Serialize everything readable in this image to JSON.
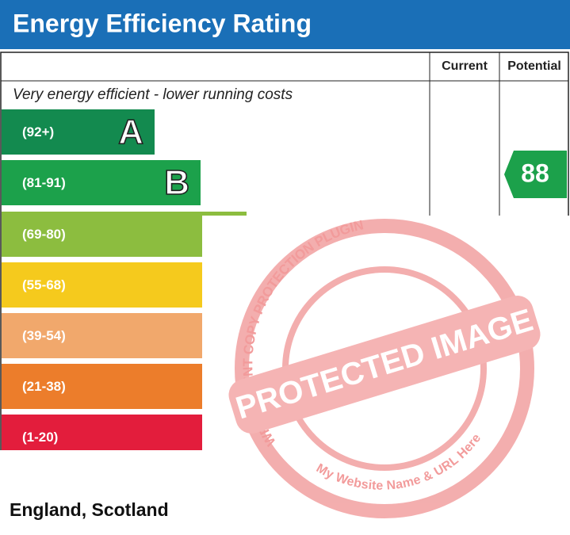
{
  "header": {
    "title": "Energy Efficiency Rating"
  },
  "table": {
    "columns": [
      "Current",
      "Potential"
    ],
    "top_note": "Very energy efficient - lower running costs",
    "bands": [
      {
        "range": "(92+)",
        "letter": "A"
      },
      {
        "range": "(81-91)",
        "letter": "B"
      },
      {
        "range": "(69-80)"
      },
      {
        "range": "(55-68)"
      },
      {
        "range": "(39-54)"
      },
      {
        "range": "(21-38)"
      },
      {
        "range": "(1-20)"
      }
    ],
    "potential": "88"
  },
  "footer": "England, Scotland",
  "watermark": {
    "top": "WP CONTENT COPY PROTECTION PLUGIN",
    "center": "PROTECTED IMAGE",
    "bottom": "My Website Name & URL Here"
  }
}
